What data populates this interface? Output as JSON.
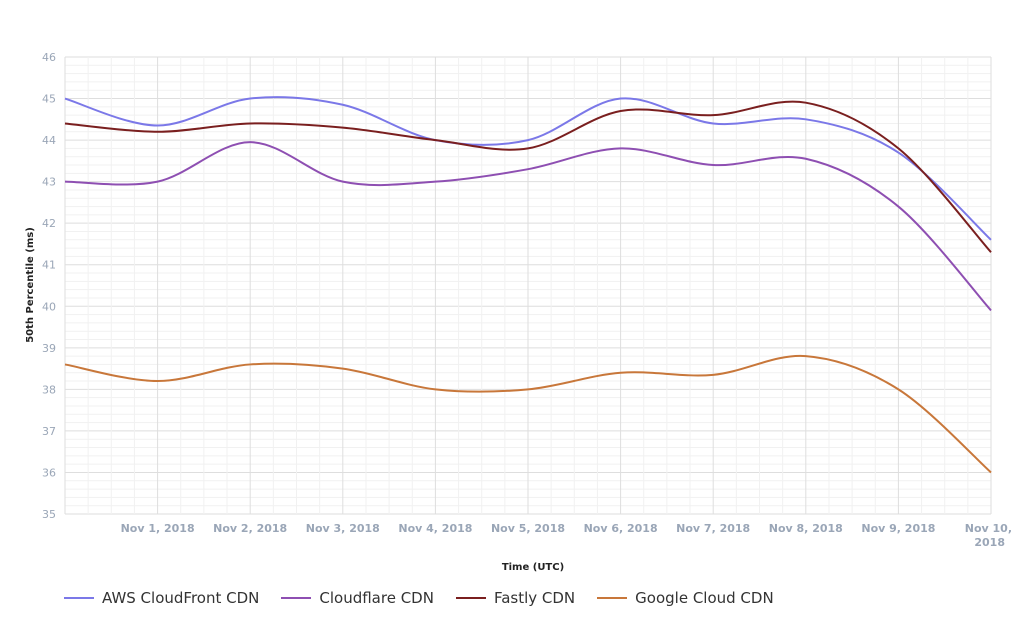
{
  "chart_data": {
    "type": "line",
    "xlabel": "Time (UTC)",
    "ylabel": "50th Percentile (ms)",
    "ylim": [
      35,
      46
    ],
    "yticks": [
      35,
      36,
      37,
      38,
      39,
      40,
      41,
      42,
      43,
      44,
      45,
      46
    ],
    "x_tick_labels": [
      "Nov 1, 2018",
      "Nov 2, 2018",
      "Nov 3, 2018",
      "Nov 4, 2018",
      "Nov 5, 2018",
      "Nov 6, 2018",
      "Nov 7, 2018",
      "Nov 8, 2018",
      "Nov 9, 2018",
      "Nov 10, 2018"
    ],
    "x": [
      "Oct 31, 2018",
      "Nov 1, 2018",
      "Nov 2, 2018",
      "Nov 3, 2018",
      "Nov 4, 2018",
      "Nov 5, 2018",
      "Nov 6, 2018",
      "Nov 7, 2018",
      "Nov 8, 2018",
      "Nov 9, 2018",
      "Nov 10, 2018"
    ],
    "grid": true,
    "legend_position": "bottom-left",
    "series": [
      {
        "name": "AWS CloudFront CDN",
        "color": "#7b78e8",
        "values": [
          45.0,
          44.35,
          45.0,
          44.85,
          44.0,
          44.0,
          45.0,
          44.4,
          44.5,
          43.7,
          41.6
        ]
      },
      {
        "name": "Cloudflare CDN",
        "color": "#8e4fb2",
        "values": [
          43.0,
          43.0,
          43.95,
          43.0,
          43.0,
          43.3,
          43.8,
          43.4,
          43.55,
          42.4,
          39.9
        ]
      },
      {
        "name": "Fastly CDN",
        "color": "#7a1f1f",
        "values": [
          44.4,
          44.2,
          44.4,
          44.3,
          44.0,
          43.8,
          44.7,
          44.6,
          44.9,
          43.8,
          41.3
        ]
      },
      {
        "name": "Google Cloud CDN",
        "color": "#c8773a",
        "values": [
          38.6,
          38.2,
          38.6,
          38.5,
          38.0,
          38.0,
          38.4,
          38.35,
          38.8,
          38.0,
          36.0
        ]
      }
    ]
  }
}
